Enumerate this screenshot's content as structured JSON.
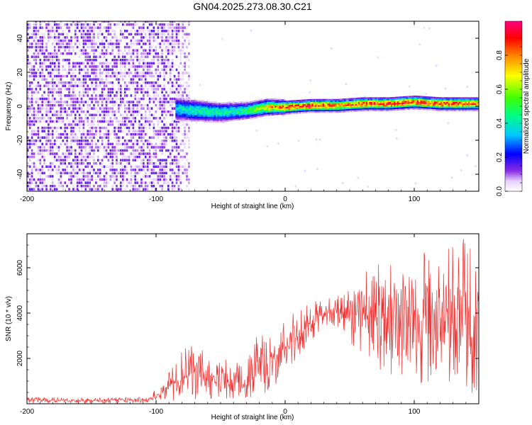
{
  "title": "GN04.2025.273.08.30.C21",
  "chart_data": [
    {
      "type": "heatmap",
      "name": "spectrogram",
      "xlabel": "Height of straight line (km)",
      "ylabel": "Frequency (Hz)",
      "xlim": [
        -200,
        150
      ],
      "ylim": [
        -50,
        50
      ],
      "xticks": [
        -200,
        -100,
        0,
        100
      ],
      "xtick_labels": [
        "-200",
        "-100",
        "0",
        "100"
      ],
      "yticks": [
        -40,
        -20,
        0,
        20,
        40
      ],
      "ytick_labels": [
        "-40",
        "-20",
        "0",
        "20",
        "40"
      ],
      "noise_region_km": [
        -200,
        -75
      ],
      "signal_ridge": {
        "x_km": [
          -85,
          -70,
          -50,
          -30,
          -15,
          0,
          20,
          40,
          60,
          80,
          100,
          120,
          150
        ],
        "freq_hz": [
          -2,
          -3,
          -4,
          -3,
          -1,
          -1,
          0,
          0,
          1,
          1,
          2,
          1,
          1
        ],
        "peak_amplitude": [
          0.4,
          0.45,
          0.45,
          0.5,
          0.75,
          0.95,
          0.95,
          0.85,
          0.95,
          0.95,
          0.95,
          0.95,
          0.9
        ]
      },
      "colorbar": {
        "label": "Normalized spectral amplitude",
        "range": [
          0,
          1
        ],
        "ticks": [
          0.0,
          0.2,
          0.4,
          0.6,
          0.8
        ],
        "tick_labels": [
          "0.0",
          "0.2",
          "0.4",
          "0.6",
          "0.8"
        ]
      }
    },
    {
      "type": "line",
      "name": "snr",
      "xlabel": "Height of straight line (km)",
      "ylabel": "SNR (10 * v/v)",
      "xlim": [
        -200,
        150
      ],
      "ylim": [
        0,
        7500
      ],
      "xticks": [
        -200,
        -100,
        0,
        100
      ],
      "xtick_labels": [
        "-200",
        "-100",
        "0",
        "100"
      ],
      "yticks": [
        2000,
        4000,
        6000
      ],
      "ytick_labels": [
        "2000",
        "4000",
        "6000"
      ],
      "series": [
        {
          "name": "SNR",
          "color": "#f03030",
          "x": [
            -200,
            -150,
            -110,
            -100,
            -90,
            -80,
            -70,
            -60,
            -50,
            -40,
            -30,
            -25,
            -20,
            -15,
            -10,
            -5,
            0,
            10,
            20,
            30,
            40,
            50,
            60,
            70,
            80,
            90,
            100,
            110,
            120,
            130,
            140,
            150
          ],
          "y_mean": [
            150,
            150,
            180,
            300,
            700,
            1200,
            1400,
            1100,
            900,
            1000,
            800,
            1300,
            1500,
            1200,
            1900,
            2200,
            2500,
            3000,
            3600,
            4000,
            4150,
            4100,
            3950,
            3900,
            3850,
            3800,
            3750,
            3650,
            3550,
            3500,
            3350,
            3300
          ],
          "y_max": [
            300,
            250,
            300,
            650,
            1400,
            2400,
            2700,
            2200,
            1800,
            2200,
            1800,
            2600,
            3600,
            2700,
            3400,
            3700,
            3900,
            4200,
            4500,
            4600,
            4900,
            5300,
            5800,
            6100,
            6600,
            6200,
            6200,
            6900,
            6500,
            7200,
            7300,
            7000
          ],
          "y_min": [
            20,
            20,
            30,
            80,
            100,
            150,
            200,
            200,
            150,
            200,
            150,
            250,
            300,
            300,
            600,
            900,
            1300,
            1900,
            2600,
            3300,
            3300,
            2700,
            1900,
            1600,
            1300,
            900,
            1000,
            600,
            500,
            300,
            200,
            400
          ]
        }
      ]
    }
  ]
}
